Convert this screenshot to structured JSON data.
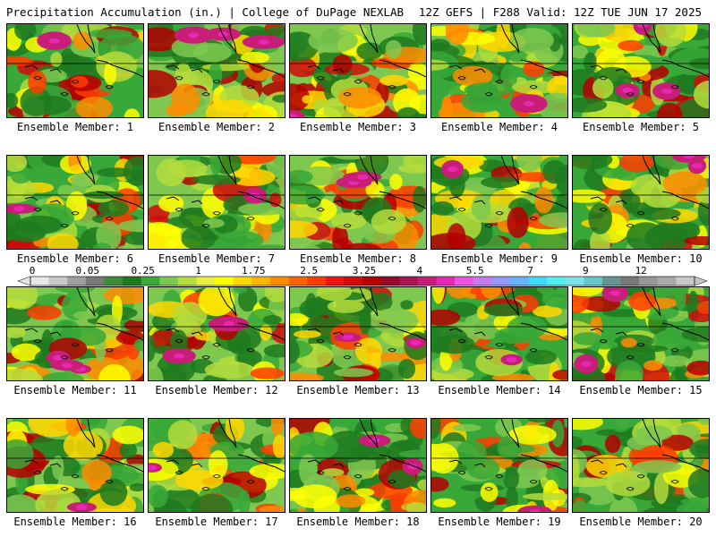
{
  "header": {
    "left": "Precipitation Accumulation (in.) | College of DuPage NEXLAB",
    "right": "12Z GEFS | F288 Valid: 12Z TUE JUN 17 2025"
  },
  "panels": [
    {
      "label": "Ensemble Member: 1",
      "member": 1
    },
    {
      "label": "Ensemble Member: 2",
      "member": 2
    },
    {
      "label": "Ensemble Member: 3",
      "member": 3
    },
    {
      "label": "Ensemble Member: 4",
      "member": 4
    },
    {
      "label": "Ensemble Member: 5",
      "member": 5
    },
    {
      "label": "Ensemble Member: 6",
      "member": 6
    },
    {
      "label": "Ensemble Member: 7",
      "member": 7
    },
    {
      "label": "Ensemble Member: 8",
      "member": 8
    },
    {
      "label": "Ensemble Member: 9",
      "member": 9
    },
    {
      "label": "Ensemble Member: 10",
      "member": 10
    },
    {
      "label": "Ensemble Member: 11",
      "member": 11
    },
    {
      "label": "Ensemble Member: 12",
      "member": 12
    },
    {
      "label": "Ensemble Member: 13",
      "member": 13
    },
    {
      "label": "Ensemble Member: 14",
      "member": 14
    },
    {
      "label": "Ensemble Member: 15",
      "member": 15
    },
    {
      "label": "Ensemble Member: 16",
      "member": 16
    },
    {
      "label": "Ensemble Member: 17",
      "member": 17
    },
    {
      "label": "Ensemble Member: 18",
      "member": 18
    },
    {
      "label": "Ensemble Member: 19",
      "member": 19
    },
    {
      "label": "Ensemble Member: 20",
      "member": 20
    }
  ],
  "colorbar": {
    "tick_labels": [
      "0",
      "0.05",
      "0.25",
      "1",
      "1.75",
      "2.5",
      "3.25",
      "4",
      "5.5",
      "7",
      "9",
      "12"
    ],
    "colors": [
      "#e6e6e6",
      "#c8c8c8",
      "#a0a0a0",
      "#787878",
      "#3c8c3c",
      "#1e7a1e",
      "#38a838",
      "#7ec850",
      "#b4dc3c",
      "#e6f03c",
      "#ffff00",
      "#ffd700",
      "#ffb400",
      "#ff8c00",
      "#ff6400",
      "#ff3c00",
      "#f01414",
      "#d20a0a",
      "#b40000",
      "#960a28",
      "#aa1450",
      "#c81e78",
      "#e628b4",
      "#f050e6",
      "#c878f0",
      "#9696ff",
      "#64b4ff",
      "#3cdcff",
      "#50f0f0",
      "#78e6e6",
      "#64c8c8",
      "#649696",
      "#787878",
      "#969696",
      "#aaaaaa",
      "#c8c8c8"
    ]
  }
}
